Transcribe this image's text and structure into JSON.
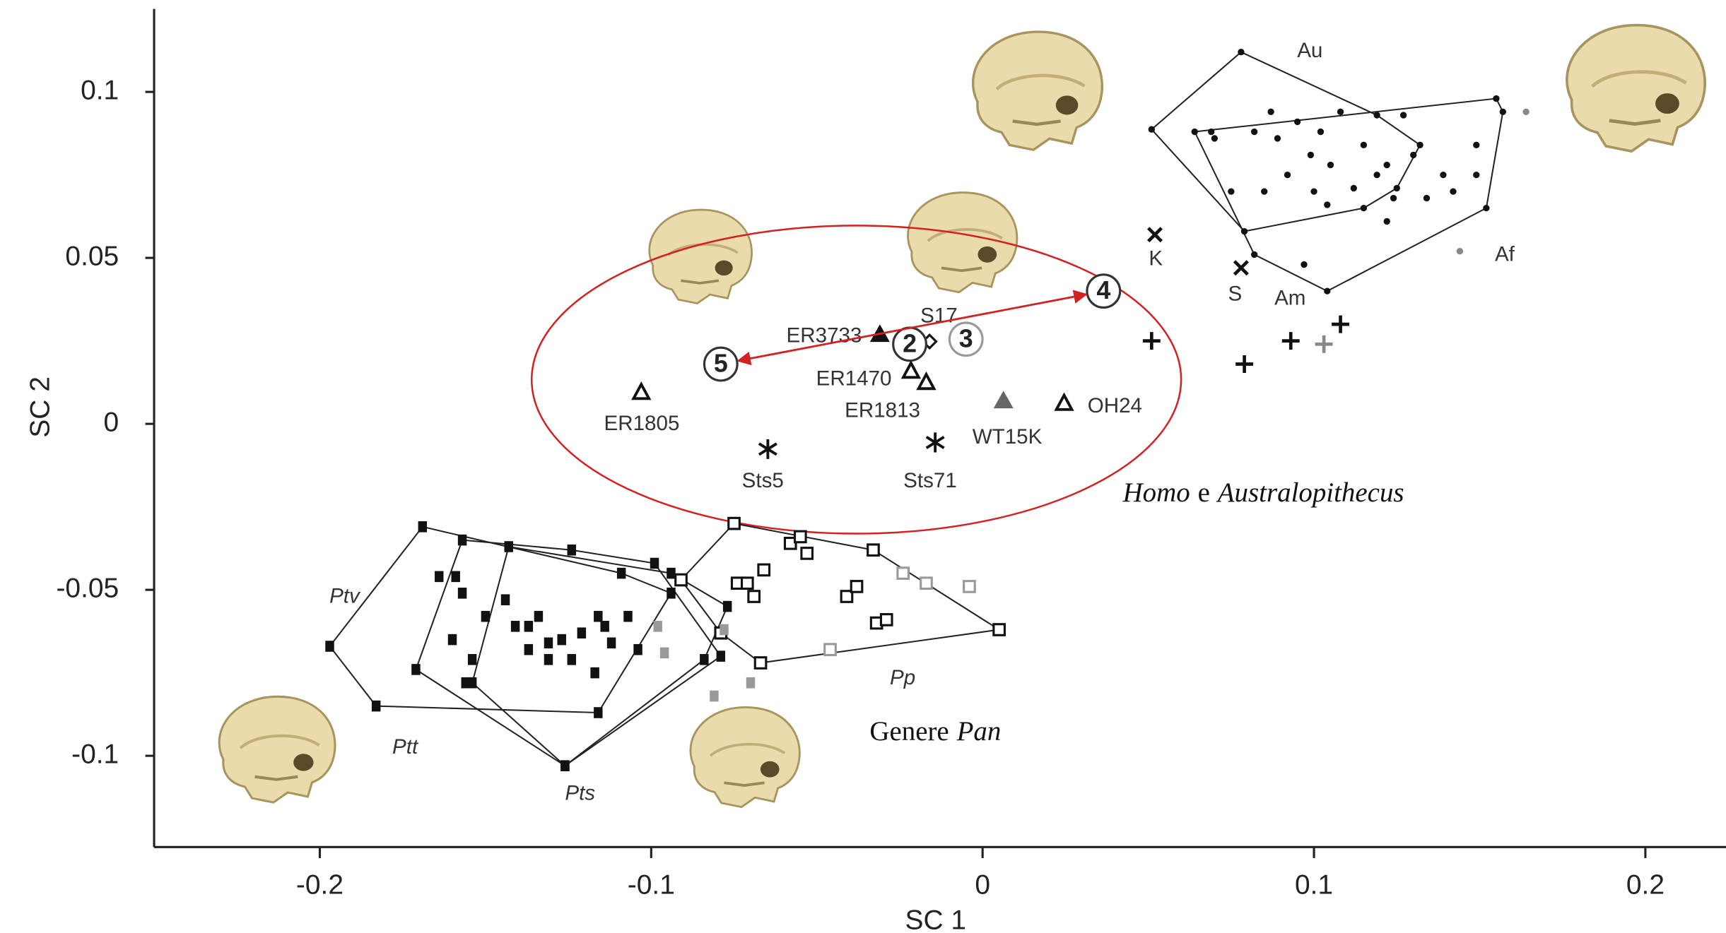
{
  "chart_data": {
    "type": "scatter",
    "x_label": "SC 1",
    "y_label": "SC 2",
    "xlim": [
      -0.25,
      0.224
    ],
    "ylim": [
      -0.1275,
      0.125
    ],
    "xticks": [
      -0.2,
      -0.1,
      0,
      0.1,
      0.2
    ],
    "yticks": [
      0.1,
      0.05,
      0,
      -0.05,
      -0.1
    ],
    "grid": false,
    "series": [
      {
        "name": "Au",
        "marker": "dot",
        "color": "#111111",
        "hull": true,
        "x": [
          0.051,
          0.078,
          0.119,
          0.13,
          0.087,
          0.095,
          0.102,
          0.108,
          0.115,
          0.069,
          0.07,
          0.082,
          0.089,
          0.099,
          0.105,
          0.119,
          0.125,
          0.132,
          0.092,
          0.1,
          0.104,
          0.112,
          0.115,
          0.122,
          0.079
        ],
        "y": [
          0.0887,
          0.112,
          0.093,
          0.081,
          0.094,
          0.091,
          0.088,
          0.094,
          0.084,
          0.088,
          0.086,
          0.088,
          0.086,
          0.081,
          0.078,
          0.075,
          0.071,
          0.084,
          0.075,
          0.07,
          0.066,
          0.071,
          0.065,
          0.078,
          0.058
        ]
      },
      {
        "name": "Am",
        "marker": "dot",
        "color": "#111111",
        "hull": true,
        "x": [
          0.064,
          0.155,
          0.157,
          0.152,
          0.104,
          0.085,
          0.075,
          0.082,
          0.097,
          0.124,
          0.134,
          0.142,
          0.139,
          0.149,
          0.149,
          0.127,
          0.122
        ],
        "y": [
          0.088,
          0.098,
          0.094,
          0.065,
          0.04,
          0.07,
          0.07,
          0.051,
          0.048,
          0.068,
          0.068,
          0.07,
          0.075,
          0.075,
          0.084,
          0.093,
          0.061
        ]
      },
      {
        "name": "Af",
        "marker": "dot",
        "color": "#888888",
        "x": [
          0.164,
          0.144
        ],
        "y": [
          0.094,
          0.052
        ]
      },
      {
        "marker": "plus",
        "color": "#111111",
        "x": [
          0.051,
          0.079,
          0.093,
          0.108
        ],
        "y": [
          0.025,
          0.018,
          0.025,
          0.03
        ]
      },
      {
        "marker": "plus",
        "color": "#888888",
        "x": [
          0.103
        ],
        "y": [
          0.024
        ]
      },
      {
        "name": "K",
        "marker": "x",
        "color": "#111111",
        "x": [
          0.052
        ],
        "y": [
          0.057
        ]
      },
      {
        "name": "S",
        "marker": "x",
        "color": "#111111",
        "x": [
          0.078
        ],
        "y": [
          0.047
        ]
      },
      {
        "name": "ER1805",
        "marker": "triangle-open",
        "color": "#111111",
        "x": [
          -0.103
        ],
        "y": [
          0.0096
        ]
      },
      {
        "name": "ER3733",
        "marker": "triangle",
        "color": "#111111",
        "x": [
          -0.031
        ],
        "y": [
          0.027
        ]
      },
      {
        "name": "ER1470",
        "marker": "triangle-open",
        "color": "#111111",
        "x": [
          -0.0216
        ],
        "y": [
          0.016
        ]
      },
      {
        "name": "ER1813",
        "marker": "triangle-open",
        "color": "#111111",
        "x": [
          -0.017
        ],
        "y": [
          0.0126
        ]
      },
      {
        "name": "WT15K",
        "marker": "triangle",
        "color": "#666666",
        "x": [
          0.0063
        ],
        "y": [
          0.007
        ]
      },
      {
        "name": "OH24",
        "marker": "triangle-open",
        "color": "#111111",
        "x": [
          0.0246
        ],
        "y": [
          0.0063
        ]
      },
      {
        "name": "Sts5",
        "marker": "asterisk",
        "color": "#111111",
        "x": [
          -0.0648
        ],
        "y": [
          -0.0076
        ]
      },
      {
        "name": "Sts71",
        "marker": "asterisk",
        "color": "#111111",
        "x": [
          -0.0143
        ],
        "y": [
          -0.0056
        ]
      },
      {
        "name": "S17",
        "marker": "diamond-open",
        "color": "#111111",
        "x": [
          -0.016
        ],
        "y": [
          0.0248
        ]
      },
      {
        "name": "5",
        "marker": "circled",
        "color": "#333333",
        "x": [
          -0.079
        ],
        "y": [
          0.018
        ]
      },
      {
        "name": "2",
        "marker": "circled",
        "color": "#333333",
        "x": [
          -0.022
        ],
        "y": [
          0.024
        ]
      },
      {
        "name": "3",
        "marker": "circled",
        "color": "#999999",
        "x": [
          -0.005
        ],
        "y": [
          0.0255
        ]
      },
      {
        "name": "4",
        "marker": "circled",
        "color": "#333333",
        "x": [
          0.0365
        ],
        "y": [
          0.04
        ]
      },
      {
        "name": "Ptv",
        "marker": "square",
        "color": "#111111",
        "hull": true,
        "x": [
          -0.197,
          -0.169,
          -0.109,
          -0.094,
          -0.116,
          -0.183,
          -0.164,
          -0.157,
          -0.15,
          -0.141,
          -0.16,
          -0.154,
          -0.137,
          -0.124
        ],
        "y": [
          -0.067,
          -0.031,
          -0.045,
          -0.051,
          -0.087,
          -0.085,
          -0.046,
          -0.051,
          -0.058,
          -0.061,
          -0.065,
          -0.071,
          -0.068,
          -0.071
        ]
      },
      {
        "name": "Ptt",
        "marker": "square",
        "color": "#111111",
        "hull": true,
        "x": [
          -0.171,
          -0.157,
          -0.124,
          -0.099,
          -0.079,
          -0.126,
          -0.156,
          -0.159,
          -0.144,
          -0.134,
          -0.127,
          -0.114,
          -0.107,
          -0.104,
          -0.117
        ],
        "y": [
          -0.074,
          -0.035,
          -0.038,
          -0.042,
          -0.07,
          -0.103,
          -0.078,
          -0.046,
          -0.053,
          -0.058,
          -0.065,
          -0.061,
          -0.058,
          -0.068,
          -0.075
        ]
      },
      {
        "name": "Pts",
        "marker": "square",
        "color": "#111111",
        "hull": true,
        "x": [
          -0.143,
          -0.094,
          -0.077,
          -0.084,
          -0.126,
          -0.154,
          -0.137,
          -0.131,
          -0.121,
          -0.112,
          -0.116,
          -0.131
        ],
        "y": [
          -0.037,
          -0.045,
          -0.055,
          -0.071,
          -0.103,
          -0.078,
          -0.061,
          -0.066,
          -0.063,
          -0.066,
          -0.058,
          -0.071
        ]
      },
      {
        "name": "Pp",
        "marker": "square-open",
        "color": "#111111",
        "hull": true,
        "x": [
          -0.091,
          -0.075,
          -0.033,
          0.005,
          -0.067,
          -0.079,
          -0.066,
          -0.058,
          -0.055,
          -0.053,
          -0.074,
          -0.069,
          -0.071,
          -0.041,
          -0.038,
          -0.032,
          -0.029
        ],
        "y": [
          -0.047,
          -0.03,
          -0.038,
          -0.062,
          -0.072,
          -0.063,
          -0.044,
          -0.036,
          -0.034,
          -0.039,
          -0.048,
          -0.052,
          -0.048,
          -0.052,
          -0.049,
          -0.06,
          -0.059
        ]
      },
      {
        "marker": "square",
        "color": "#999999",
        "x": [
          -0.098,
          -0.096,
          -0.081,
          -0.07,
          -0.078
        ],
        "y": [
          -0.061,
          -0.069,
          -0.082,
          -0.078,
          -0.062
        ]
      },
      {
        "marker": "square-open",
        "color": "#999999",
        "x": [
          -0.024,
          -0.017,
          -0.004,
          -0.046
        ],
        "y": [
          -0.045,
          -0.048,
          -0.049,
          -0.068
        ]
      }
    ],
    "annotations": [
      {
        "parts": [
          "Homo",
          "e",
          "Australopithecus"
        ]
      },
      {
        "parts": [
          "Genere",
          "Pan"
        ]
      }
    ]
  }
}
